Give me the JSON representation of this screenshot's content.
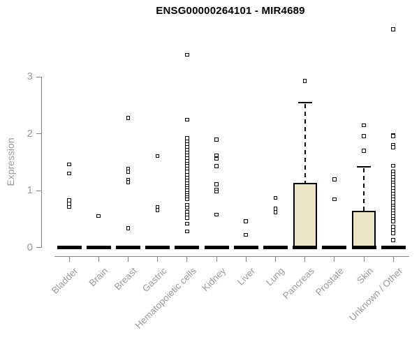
{
  "chart_data": {
    "type": "boxplot",
    "title": "ENSG00000264101 - MIR4689",
    "ylabel": "Expression",
    "xlabel": "",
    "yticks": [
      0,
      1,
      2,
      3
    ],
    "ylim": [
      0,
      3.93
    ],
    "grid": false,
    "legend": "none",
    "colors": {
      "box_fill": "#ece5c6",
      "box_line": "#000000",
      "median_line": "#000000",
      "outlier_line": "#000000",
      "axis_line": "#808080",
      "axis_text": "#999999",
      "title_text": "#000000",
      "background": "#ffffff"
    },
    "categories": [
      "Bladder",
      "Brain",
      "Breast",
      "Gastric",
      "Hematopoietic cells",
      "Kidney",
      "Liver",
      "Lung",
      "Pancreas",
      "Prostate",
      "Skin",
      "Unknown / Other"
    ],
    "series": [
      {
        "category": "Bladder",
        "q1": 0,
        "median": 0,
        "q3": 0,
        "whisker_low": 0,
        "whisker_high": 0,
        "outliers": [
          1.46,
          1.3,
          0.83,
          0.77,
          0.71
        ]
      },
      {
        "category": "Brain",
        "q1": 0,
        "median": 0,
        "q3": 0,
        "whisker_low": 0,
        "whisker_high": 0,
        "outliers": [
          0.55
        ]
      },
      {
        "category": "Breast",
        "q1": 0,
        "median": 0,
        "q3": 0,
        "whisker_low": 0,
        "whisker_high": 0,
        "outliers": [
          2.28,
          1.39,
          1.33,
          1.19,
          1.15,
          0.34
        ]
      },
      {
        "category": "Gastric",
        "q1": 0,
        "median": 0,
        "q3": 0,
        "whisker_low": 0,
        "whisker_high": 0,
        "outliers": [
          1.61,
          0.71,
          0.66
        ]
      },
      {
        "category": "Hematopoietic cells",
        "q1": 0,
        "median": 0,
        "q3": 0,
        "whisker_low": 0,
        "whisker_high": 0,
        "outliers": [
          3.39,
          2.25,
          1.92,
          1.87,
          1.82,
          1.77,
          1.72,
          1.67,
          1.62,
          1.57,
          1.52,
          1.47,
          1.43,
          1.38,
          1.33,
          1.28,
          1.23,
          1.18,
          1.13,
          1.08,
          1.04,
          1.0,
          0.96,
          0.92,
          0.88,
          0.85,
          0.75,
          0.7,
          0.62,
          0.57,
          0.52,
          0.42,
          0.28
        ]
      },
      {
        "category": "Kidney",
        "q1": 0,
        "median": 0,
        "q3": 0,
        "whisker_low": 0,
        "whisker_high": 0,
        "outliers": [
          1.9,
          1.62,
          1.56,
          1.43,
          1.11,
          1.02,
          0.98,
          0.58
        ]
      },
      {
        "category": "Liver",
        "q1": 0,
        "median": 0,
        "q3": 0,
        "whisker_low": 0,
        "whisker_high": 0,
        "outliers": [
          0.46,
          0.22
        ]
      },
      {
        "category": "Lung",
        "q1": 0,
        "median": 0,
        "q3": 0,
        "whisker_low": 0,
        "whisker_high": 0,
        "outliers": [
          0.87,
          0.68,
          0.62
        ]
      },
      {
        "category": "Pancreas",
        "q1": 0,
        "median": 0,
        "q3": 1.14,
        "whisker_low": 0,
        "whisker_high": 2.55,
        "outliers": [
          2.93
        ]
      },
      {
        "category": "Prostate",
        "q1": 0,
        "median": 0,
        "q3": 0,
        "whisker_low": 0,
        "whisker_high": 0,
        "outliers": [
          1.2,
          0.85
        ]
      },
      {
        "category": "Skin",
        "q1": 0,
        "median": 0,
        "q3": 0.64,
        "whisker_low": 0,
        "whisker_high": 1.42,
        "outliers": [
          2.15,
          1.96,
          1.7
        ]
      },
      {
        "category": "Unknown / Other",
        "q1": 0,
        "median": 0,
        "q3": 0,
        "whisker_low": 0,
        "whisker_high": 0,
        "outliers": [
          3.84,
          1.98,
          1.96,
          1.8,
          1.76,
          1.44,
          1.34,
          1.29,
          1.24,
          1.19,
          1.14,
          1.1,
          1.04,
          0.99,
          0.94,
          0.89,
          0.84,
          0.79,
          0.74,
          0.7,
          0.65,
          0.6,
          0.55,
          0.5,
          0.46,
          0.36,
          0.3,
          0.25,
          0.13
        ]
      }
    ]
  }
}
